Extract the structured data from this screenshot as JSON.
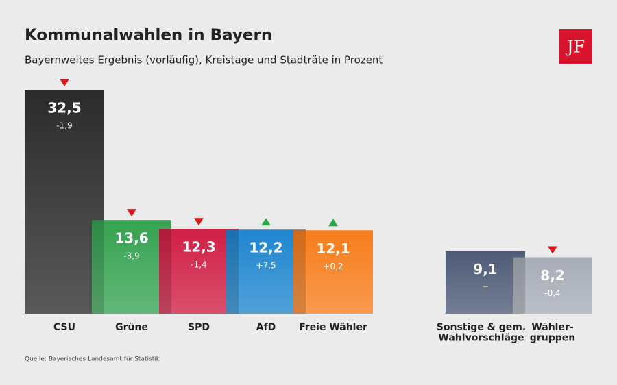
{
  "chart_data": {
    "type": "bar",
    "title": "Kommunalwahlen in Bayern",
    "subtitle": "Bayernweites Ergebnis (vorläufig), Kreistage und Stadträte in Prozent",
    "source": "Quelle: Bayerisches Landesamt für Statistik",
    "logo": "JF",
    "categories": [
      "CSU",
      "Grüne",
      "SPD",
      "AfD",
      "Freie Wähler",
      "Sonstige & gem.\nWahlvorschläge",
      "Wähler-\ngruppen"
    ],
    "values": [
      32.5,
      13.6,
      12.3,
      12.2,
      12.1,
      9.1,
      8.2
    ],
    "value_labels": [
      "32,5",
      "13,6",
      "12,3",
      "12,2",
      "12,1",
      "9,1",
      "8,2"
    ],
    "changes": [
      -1.9,
      -3.9,
      -1.4,
      7.5,
      0.2,
      0,
      -0.4
    ],
    "change_labels": [
      "-1,9",
      "-3,9",
      "-1,4",
      "+7,5",
      "+0,2",
      "=",
      "-0,4"
    ],
    "colors": [
      "#2b2b2b",
      "#36a352",
      "#d01f45",
      "#1f86cf",
      "#f77d1c",
      "#4e5b77",
      "#a7acb7"
    ],
    "ylim": [
      0,
      32.5
    ]
  }
}
